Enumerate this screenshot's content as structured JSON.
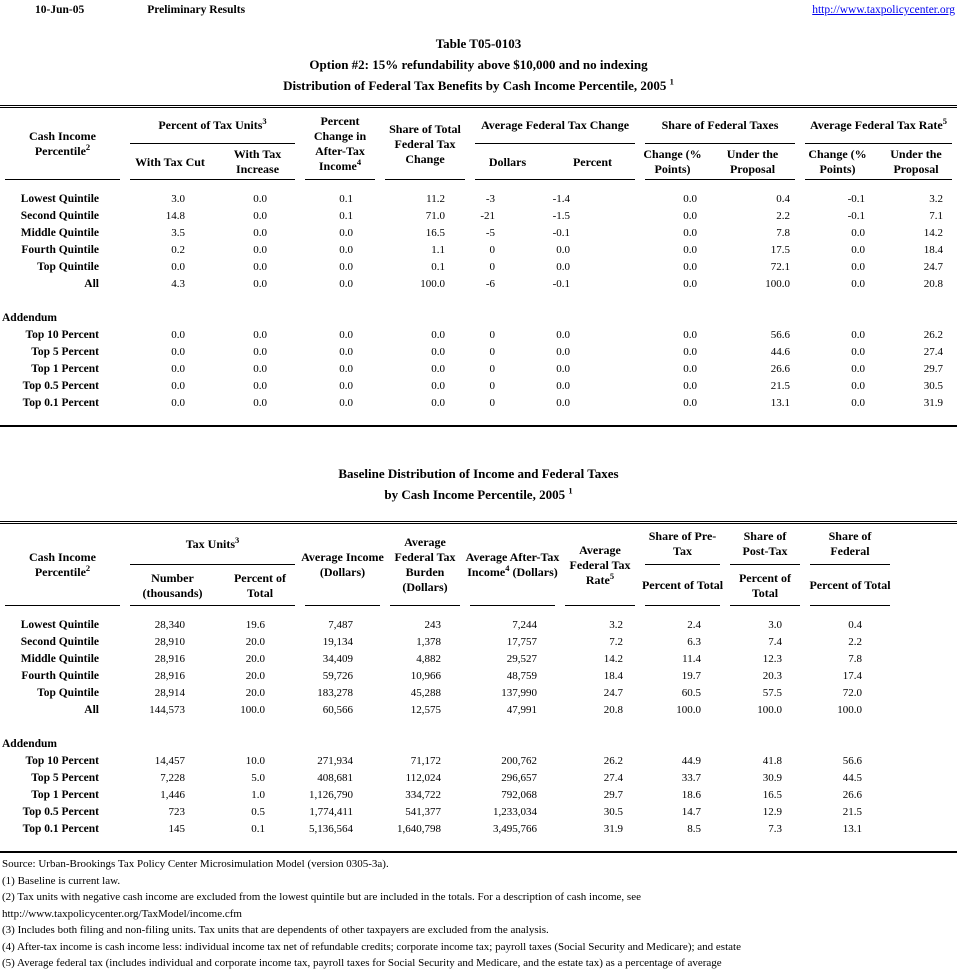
{
  "page": {
    "date": "10-Jun-05",
    "status": "Preliminary Results",
    "url": "http://www.taxpolicycenter.org"
  },
  "title": {
    "line1": "Table T05-0103",
    "line2": "Option #2: 15% refundability above $10,000 and no indexing",
    "line3": "Distribution of Federal Tax Benefits by Cash Income Percentile, 2005",
    "line3_sup": "1"
  },
  "table1": {
    "header": {
      "cash_income": "Cash Income Percentile",
      "cash_income_sup": "2",
      "group_tax_units": "Percent of Tax Units",
      "group_tax_units_sup": "3",
      "with_tax_cut": "With Tax Cut",
      "with_tax_increase": "With Tax Increase",
      "pct_change_ati": "Percent Change in After-Tax Income",
      "pct_change_ati_sup": "4",
      "share_total_change": "Share of Total Federal Tax Change",
      "group_avg_change": "Average Federal Tax Change",
      "dollars": "Dollars",
      "percent": "Percent",
      "group_share_taxes": "Share of Federal Taxes",
      "change_points_a": "Change (% Points)",
      "under_proposal_a": "Under the Proposal",
      "group_avg_rate": "Average Federal Tax Rate",
      "group_avg_rate_sup": "5",
      "change_points_b": "Change (% Points)",
      "under_proposal_b": "Under the Proposal"
    },
    "rows": [
      {
        "label": "Lowest Quintile",
        "cells": [
          "3.0",
          "0.0",
          "0.1",
          "11.2",
          "-3",
          "-1.4",
          "0.0",
          "0.4",
          "-0.1",
          "3.2"
        ]
      },
      {
        "label": "Second Quintile",
        "cells": [
          "14.8",
          "0.0",
          "0.1",
          "71.0",
          "-21",
          "-1.5",
          "0.0",
          "2.2",
          "-0.1",
          "7.1"
        ]
      },
      {
        "label": "Middle Quintile",
        "cells": [
          "3.5",
          "0.0",
          "0.0",
          "16.5",
          "-5",
          "-0.1",
          "0.0",
          "7.8",
          "0.0",
          "14.2"
        ]
      },
      {
        "label": "Fourth Quintile",
        "cells": [
          "0.2",
          "0.0",
          "0.0",
          "1.1",
          "0",
          "0.0",
          "0.0",
          "17.5",
          "0.0",
          "18.4"
        ]
      },
      {
        "label": "Top Quintile",
        "cells": [
          "0.0",
          "0.0",
          "0.0",
          "0.1",
          "0",
          "0.0",
          "0.0",
          "72.1",
          "0.0",
          "24.7"
        ]
      },
      {
        "label": "All",
        "cells": [
          "4.3",
          "0.0",
          "0.0",
          "100.0",
          "-6",
          "-0.1",
          "0.0",
          "100.0",
          "0.0",
          "20.8"
        ]
      },
      {
        "spacer": true
      },
      {
        "label": "Addendum",
        "section": true,
        "cells": [
          "",
          "",
          "",
          "",
          "",
          "",
          "",
          "",
          "",
          ""
        ]
      },
      {
        "label": "Top 10 Percent",
        "cells": [
          "0.0",
          "0.0",
          "0.0",
          "0.0",
          "0",
          "0.0",
          "0.0",
          "56.6",
          "0.0",
          "26.2"
        ]
      },
      {
        "label": "Top 5 Percent",
        "cells": [
          "0.0",
          "0.0",
          "0.0",
          "0.0",
          "0",
          "0.0",
          "0.0",
          "44.6",
          "0.0",
          "27.4"
        ]
      },
      {
        "label": "Top 1 Percent",
        "cells": [
          "0.0",
          "0.0",
          "0.0",
          "0.0",
          "0",
          "0.0",
          "0.0",
          "26.6",
          "0.0",
          "29.7"
        ]
      },
      {
        "label": "Top 0.5 Percent",
        "cells": [
          "0.0",
          "0.0",
          "0.0",
          "0.0",
          "0",
          "0.0",
          "0.0",
          "21.5",
          "0.0",
          "30.5"
        ]
      },
      {
        "label": "Top 0.1 Percent",
        "cells": [
          "0.0",
          "0.0",
          "0.0",
          "0.0",
          "0",
          "0.0",
          "0.0",
          "13.1",
          "0.0",
          "31.9"
        ]
      }
    ]
  },
  "table2": {
    "title_line1": "Baseline Distribution of Income and Federal Taxes",
    "title_line2": "by Cash Income Percentile, 2005",
    "title_sup": "1",
    "header": {
      "cash_income": "Cash Income Percentile",
      "cash_income_sup": "2",
      "group_tax_units": "Tax Units",
      "group_tax_units_sup": "3",
      "number_thousands": "Number (thousands)",
      "percent_of_total": "Percent of Total",
      "avg_income": "Average Income (Dollars)",
      "avg_fed_burden": "Average Federal Tax Burden (Dollars)",
      "avg_after_tax": "Average After-Tax Income",
      "avg_after_tax_sup": "4",
      "avg_after_tax_post": " (Dollars)",
      "avg_fed_rate": "Average Federal Tax Rate",
      "avg_fed_rate_sup": "5",
      "share_pre_tax": "Share of Pre-Tax",
      "share_pre_tax_sub": "Percent of Total",
      "share_post_tax": "Share of Post-Tax",
      "share_post_tax_sub": "Percent of Total",
      "share_federal": "Share of Federal",
      "share_federal_sub": "Percent of Total"
    },
    "rows": [
      {
        "label": "Lowest Quintile",
        "cells": [
          "28,340",
          "19.6",
          "7,487",
          "243",
          "7,244",
          "3.2",
          "2.4",
          "3.0",
          "0.4"
        ]
      },
      {
        "label": "Second Quintile",
        "cells": [
          "28,910",
          "20.0",
          "19,134",
          "1,378",
          "17,757",
          "7.2",
          "6.3",
          "7.4",
          "2.2"
        ]
      },
      {
        "label": "Middle Quintile",
        "cells": [
          "28,916",
          "20.0",
          "34,409",
          "4,882",
          "29,527",
          "14.2",
          "11.4",
          "12.3",
          "7.8"
        ]
      },
      {
        "label": "Fourth Quintile",
        "cells": [
          "28,916",
          "20.0",
          "59,726",
          "10,966",
          "48,759",
          "18.4",
          "19.7",
          "20.3",
          "17.4"
        ]
      },
      {
        "label": "Top Quintile",
        "cells": [
          "28,914",
          "20.0",
          "183,278",
          "45,288",
          "137,990",
          "24.7",
          "60.5",
          "57.5",
          "72.0"
        ]
      },
      {
        "label": "All",
        "cells": [
          "144,573",
          "100.0",
          "60,566",
          "12,575",
          "47,991",
          "20.8",
          "100.0",
          "100.0",
          "100.0"
        ]
      },
      {
        "spacer": true
      },
      {
        "label": "Addendum",
        "section": true,
        "cells": [
          "",
          "",
          "",
          "",
          "",
          "",
          "",
          "",
          ""
        ]
      },
      {
        "label": "Top 10 Percent",
        "cells": [
          "14,457",
          "10.0",
          "271,934",
          "71,172",
          "200,762",
          "26.2",
          "44.9",
          "41.8",
          "56.6"
        ]
      },
      {
        "label": "Top 5 Percent",
        "cells": [
          "7,228",
          "5.0",
          "408,681",
          "112,024",
          "296,657",
          "27.4",
          "33.7",
          "30.9",
          "44.5"
        ]
      },
      {
        "label": "Top 1 Percent",
        "cells": [
          "1,446",
          "1.0",
          "1,126,790",
          "334,722",
          "792,068",
          "29.7",
          "18.6",
          "16.5",
          "26.6"
        ]
      },
      {
        "label": "Top 0.5 Percent",
        "cells": [
          "723",
          "0.5",
          "1,774,411",
          "541,377",
          "1,233,034",
          "30.5",
          "14.7",
          "12.9",
          "21.5"
        ]
      },
      {
        "label": "Top 0.1 Percent",
        "cells": [
          "145",
          "0.1",
          "5,136,564",
          "1,640,798",
          "3,495,766",
          "31.9",
          "8.5",
          "7.3",
          "13.1"
        ]
      }
    ]
  },
  "notes": {
    "lines": [
      "Source: Urban-Brookings Tax Policy Center Microsimulation Model (version 0305-3a).",
      "(1) Baseline is current law.",
      "(2) Tax units with negative cash income are excluded from the lowest quintile but are included in the totals. For a description of cash income, see",
      "http://www.taxpolicycenter.org/TaxModel/income.cfm",
      "(3) Includes both filing and non-filing units.  Tax units that are dependents of other taxpayers are excluded from the analysis.",
      "(4) After-tax income is cash income less: individual income tax net of refundable credits; corporate income tax; payroll taxes (Social Security and Medicare); and estate",
      "(5) Average federal tax (includes individual and corporate income tax, payroll taxes for Social Security and Medicare, and the estate tax) as a percentage of average"
    ]
  }
}
